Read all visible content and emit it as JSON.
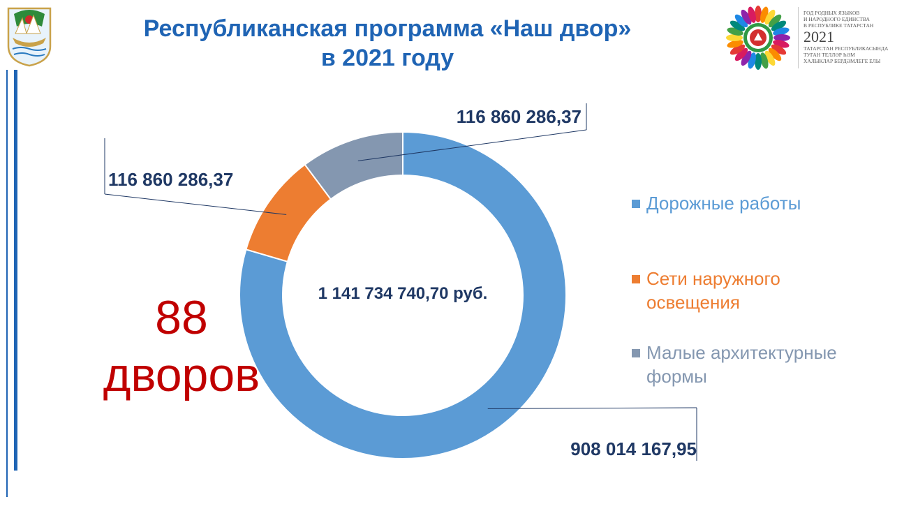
{
  "title": {
    "line1": "Республиканская программа «Наш двор»",
    "line2": "в 2021 году"
  },
  "emblem_right": {
    "line1": "ГОД РОДНЫХ ЯЗЫКОВ",
    "line2": "И НАРОДНОГО ЕДИНСТВА",
    "line3": "В РЕСПУБЛИКЕ ТАТАРСТАН",
    "year": "2021",
    "line4": "ТАТАРСТАН РЕСПУБЛИКАСЫНДА",
    "line5": "ТУГАН ТЕЛЛӘР ҺӘМ",
    "line6": "ХАЛЫКЛАР БЕРДӘМЛЕГЕ ЕЛЫ"
  },
  "courtyards": {
    "count": "88",
    "unit": "дворов"
  },
  "chart_data": {
    "type": "pie",
    "donut": true,
    "center_label": "1 141 734 740,70 руб.",
    "legend_position": "right",
    "series": [
      {
        "name": "Дорожные работы",
        "value": 908014167.95,
        "label": "908 014 167,95",
        "color": "#5b9bd5"
      },
      {
        "name": "Сети наружного освещения",
        "value": 116860286.37,
        "label": "116 860 286,37",
        "color": "#ed7d31"
      },
      {
        "name": "Малые архитектурные формы",
        "value": 116860286.37,
        "label": "116 860 286,37",
        "color": "#8497b0"
      }
    ]
  },
  "colors": {
    "title": "#1f64b4",
    "value_label": "#1f3864",
    "count": "#c00000",
    "accent_line": "#1f64b4"
  }
}
